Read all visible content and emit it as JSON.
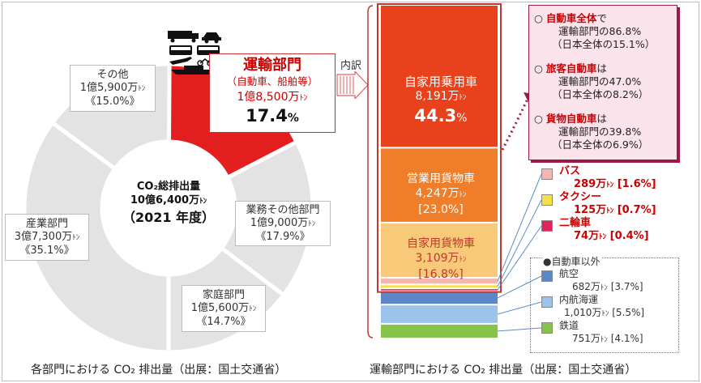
{
  "left_chart": {
    "type": "pie",
    "center": {
      "title": "CO₂総排出量",
      "total": "10億6,400万",
      "unit": "ﾄﾝ",
      "year": "（2021 年度）"
    },
    "slices": [
      {
        "name": "運輸部門",
        "sub": "（自動車、船舶等）",
        "value_text": "1億8,500万",
        "unit": "ﾄﾝ",
        "pct_text": "17.4",
        "pct_sign": "%",
        "pct": 17.4,
        "color": "#e21e1e"
      },
      {
        "name": "業務その他部門",
        "value_text": "1億9,000万",
        "unit": "ﾄﾝ",
        "pct_text": "《17.9%》",
        "pct": 17.9,
        "color": "#e3e3e3"
      },
      {
        "name": "家庭部門",
        "value_text": "1億5,600万",
        "unit": "ﾄﾝ",
        "pct_text": "《14.7%》",
        "pct": 14.7,
        "color": "#e3e3e3"
      },
      {
        "name": "産業部門",
        "value_text": "3億7,300万",
        "unit": "ﾄﾝ",
        "pct_text": "《35.1%》",
        "pct": 35.1,
        "color": "#e3e3e3"
      },
      {
        "name": "その他",
        "value_text": "1億5,900万",
        "unit": "ﾄﾝ",
        "pct_text": "《15.0%》",
        "pct": 15.0,
        "color": "#e3e3e3"
      }
    ],
    "caption": "各部門における CO₂ 排出量（出展：国土交通省）"
  },
  "breakdown_label": "内訳",
  "chart_data": {
    "type": "bar",
    "stacked": true,
    "categories": [
      "自家用乗用車",
      "営業用貨物車",
      "自家用貨物車",
      "バス",
      "タクシー",
      "二輪車",
      "航空",
      "内航海運",
      "鉄道"
    ],
    "values": [
      44.3,
      23.0,
      16.8,
      1.6,
      0.7,
      0.4,
      3.7,
      5.5,
      4.1
    ],
    "segments": [
      {
        "name": "自家用乗用車",
        "value_text": "8,191万",
        "unit": "ﾄﾝ",
        "pct_text": "44.3",
        "pct_sign": "%",
        "pct": 44.3,
        "color": "#e8411c"
      },
      {
        "name": "営業用貨物車",
        "value_text": "4,247万",
        "unit": "ﾄﾝ",
        "pct_text": "[23.0%]",
        "pct": 23.0,
        "color": "#f07d2a"
      },
      {
        "name": "自家用貨物車",
        "value_text": "3,109万",
        "unit": "ﾄﾝ",
        "pct_text": "[16.8%]",
        "pct": 16.8,
        "color": "#f7c978"
      },
      {
        "name": "バス",
        "value_text": "289万",
        "unit": "ﾄﾝ",
        "pct_text": "[1.6%]",
        "pct": 1.6,
        "color": "#f4b6b0"
      },
      {
        "name": "タクシー",
        "value_text": "125万",
        "unit": "ﾄﾝ",
        "pct_text": "[0.7%]",
        "pct": 0.7,
        "color": "#f4e04a"
      },
      {
        "name": "二輪車",
        "value_text": "74万",
        "unit": "ﾄﾝ",
        "pct_text": "[0.4%]",
        "pct": 0.4,
        "color": "#e0245a"
      },
      {
        "name": "航空",
        "value_text": "682万",
        "unit": "ﾄﾝ",
        "pct_text": "[3.7%]",
        "pct": 3.7,
        "color": "#5b87c9"
      },
      {
        "name": "内航海運",
        "value_text": "1,010万",
        "unit": "ﾄﾝ",
        "pct_text": "[5.5%]",
        "pct": 5.5,
        "color": "#9cc3ea"
      },
      {
        "name": "鉄道",
        "value_text": "751万",
        "unit": "ﾄﾝ",
        "pct_text": "[4.1%]",
        "pct": 4.1,
        "color": "#86c34a"
      }
    ],
    "caption": "運輸部門における CO₂ 排出量（出展：国土交通省）"
  },
  "non_auto_label": "●自動車以外",
  "callout": {
    "items": [
      {
        "head": "自動車全体",
        "head_suffix": "で",
        "line2": "運輸部門の86.8%",
        "line3": "（日本全体の15.1%）"
      },
      {
        "head": "旅客自動車",
        "head_suffix": "は",
        "line2": "運輸部門の47.0%",
        "line3": "（日本全体の8.2%）"
      },
      {
        "head": "貨物自動車",
        "head_suffix": "は",
        "line2": "運輸部門の39.8%",
        "line3": "（日本全体の6.9%）"
      }
    ]
  }
}
